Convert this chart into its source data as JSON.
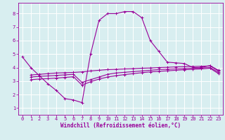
{
  "background_color": "#d8eef0",
  "grid_color": "#ffffff",
  "line_color": "#990099",
  "marker": "+",
  "markersize": 3.5,
  "linewidth": 0.8,
  "xlabel": "Windchill (Refroidissement éolien,°C)",
  "xlabel_fontsize": 5.5,
  "tick_fontsize": 5.0,
  "ylim": [
    0.5,
    8.8
  ],
  "xlim": [
    -0.5,
    23.5
  ],
  "yticks": [
    1,
    2,
    3,
    4,
    5,
    6,
    7,
    8
  ],
  "xticks": [
    0,
    1,
    2,
    3,
    4,
    5,
    6,
    7,
    8,
    9,
    10,
    11,
    12,
    13,
    14,
    15,
    16,
    17,
    18,
    19,
    20,
    21,
    22,
    23
  ],
  "line1_x": [
    0,
    1,
    2,
    3,
    4,
    5,
    6,
    7,
    8,
    9,
    10,
    11,
    12,
    13,
    14,
    15,
    16,
    17,
    18,
    19,
    20,
    21,
    22,
    23
  ],
  "line1_y": [
    4.8,
    4.0,
    3.4,
    2.8,
    2.3,
    1.7,
    1.6,
    1.4,
    5.0,
    7.5,
    8.0,
    8.0,
    8.15,
    8.15,
    7.7,
    6.0,
    5.2,
    4.4,
    4.35,
    4.3,
    4.0,
    4.0,
    4.15,
    3.8
  ],
  "line2_x": [
    1,
    2,
    3,
    4,
    5,
    6,
    7,
    8,
    9,
    10,
    11,
    12,
    13,
    14,
    15,
    16,
    17,
    18,
    19,
    20,
    21,
    22,
    23
  ],
  "line2_y": [
    3.45,
    3.5,
    3.55,
    3.6,
    3.62,
    3.64,
    3.68,
    3.75,
    3.8,
    3.85,
    3.87,
    3.9,
    3.92,
    3.95,
    3.97,
    4.0,
    4.02,
    4.05,
    4.07,
    4.08,
    4.1,
    4.12,
    3.75
  ],
  "line3_x": [
    1,
    2,
    3,
    4,
    5,
    6,
    7,
    8,
    9,
    10,
    11,
    12,
    13,
    14,
    15,
    16,
    17,
    18,
    19,
    20,
    21,
    22,
    23
  ],
  "line3_y": [
    3.3,
    3.35,
    3.38,
    3.42,
    3.46,
    3.5,
    2.9,
    3.1,
    3.3,
    3.5,
    3.6,
    3.65,
    3.7,
    3.75,
    3.8,
    3.85,
    3.88,
    3.9,
    3.93,
    3.95,
    3.97,
    4.0,
    3.65
  ],
  "line4_x": [
    1,
    2,
    3,
    4,
    5,
    6,
    7,
    8,
    9,
    10,
    11,
    12,
    13,
    14,
    15,
    16,
    17,
    18,
    19,
    20,
    21,
    22,
    23
  ],
  "line4_y": [
    3.1,
    3.15,
    3.18,
    3.22,
    3.27,
    3.32,
    2.7,
    2.95,
    3.15,
    3.3,
    3.4,
    3.48,
    3.55,
    3.62,
    3.68,
    3.72,
    3.76,
    3.8,
    3.84,
    3.87,
    3.9,
    3.95,
    3.55
  ]
}
